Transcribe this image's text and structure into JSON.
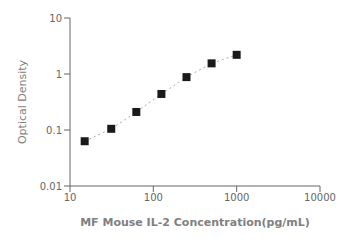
{
  "chart_data": {
    "type": "line",
    "x": [
      15,
      31.25,
      62.5,
      125,
      250,
      500,
      1000
    ],
    "series": [
      {
        "type": "line",
        "color": "#aaaaaa",
        "line_style": "dotted",
        "values": [
          0.063,
          0.105,
          0.21,
          0.44,
          0.88,
          1.55,
          2.2
        ]
      },
      {
        "type": "scatter",
        "color": "#1a1a1a",
        "marker": "square",
        "values": [
          0.063,
          0.105,
          0.21,
          0.44,
          0.88,
          1.55,
          2.2
        ]
      }
    ],
    "xlabel": "MF Mouse IL-2 Concentration(pg/mL)",
    "ylabel": "Optical Density",
    "xlim": [
      10,
      10000
    ],
    "ylim": [
      0.01,
      10
    ],
    "xticks": [
      10,
      100,
      1000,
      10000
    ],
    "yticks": [
      0.01,
      0.1,
      1,
      10
    ],
    "log": true,
    "grid": false
  }
}
